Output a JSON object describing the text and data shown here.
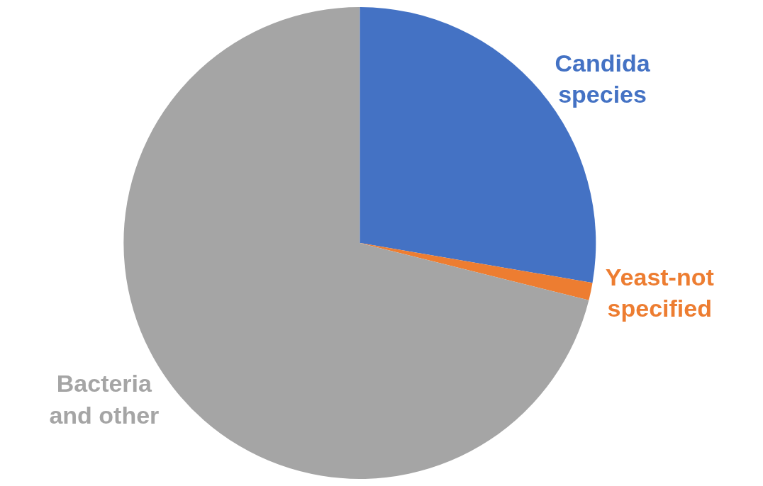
{
  "chart_data": {
    "type": "pie",
    "categories": [
      "Candida species",
      "Yeast-not specified",
      "Bacteria and other"
    ],
    "values": [
      27.7,
      1.2,
      71.1
    ],
    "colors": [
      "#4472c4",
      "#ed7d31",
      "#a5a5a5"
    ],
    "legend": false
  }
}
